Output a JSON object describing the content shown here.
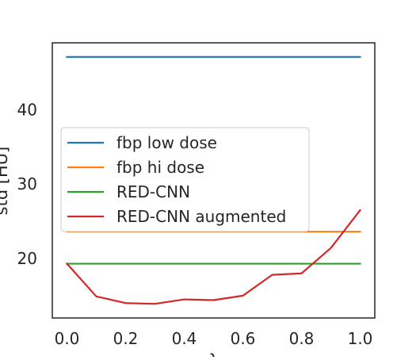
{
  "chart_data": {
    "type": "line",
    "title": "",
    "xlabel": "λ",
    "ylabel": "std [HU]",
    "xlim": [
      -0.05,
      1.05
    ],
    "ylim": [
      12,
      49
    ],
    "xticks": [
      "0.0",
      "0.2",
      "0.4",
      "0.6",
      "0.8",
      "1.0"
    ],
    "yticks": [
      "20",
      "30",
      "40"
    ],
    "grid": false,
    "legend_position": "center-left",
    "x": [
      0.0,
      0.1,
      0.2,
      0.3,
      0.4,
      0.5,
      0.6,
      0.7,
      0.8,
      0.9,
      1.0
    ],
    "series": [
      {
        "name": "fbp low dose",
        "color": "#1f77b4",
        "values": [
          47.1,
          47.1,
          47.1,
          47.1,
          47.1,
          47.1,
          47.1,
          47.1,
          47.1,
          47.1,
          47.1
        ]
      },
      {
        "name": "fbp hi dose",
        "color": "#ff7f0e",
        "values": [
          23.6,
          23.6,
          23.6,
          23.6,
          23.6,
          23.6,
          23.6,
          23.6,
          23.6,
          23.6,
          23.6
        ]
      },
      {
        "name": "RED-CNN",
        "color": "#2ca02c",
        "values": [
          19.3,
          19.3,
          19.3,
          19.3,
          19.3,
          19.3,
          19.3,
          19.3,
          19.3,
          19.3,
          19.3
        ]
      },
      {
        "name": "RED-CNN augmented",
        "color": "#d62728",
        "values": [
          19.3,
          14.9,
          14.0,
          13.9,
          14.5,
          14.4,
          15.0,
          17.8,
          18.0,
          21.4,
          26.5
        ]
      }
    ]
  }
}
